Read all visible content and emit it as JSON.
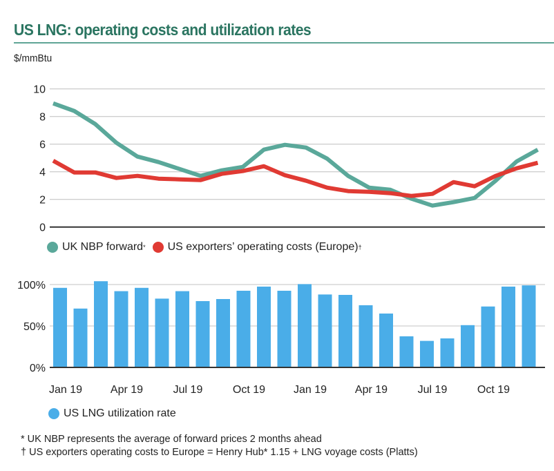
{
  "header": {
    "title": "US LNG: operating costs and utilization rates",
    "unit_label": "$/mmBtu"
  },
  "legend_top": [
    {
      "label": "UK NBP forward",
      "mark": "*",
      "color": "#5aa89a"
    },
    {
      "label": "US exporters’ operating costs (Europe)",
      "mark": "†",
      "color": "#e03a33"
    }
  ],
  "legend_bottom": [
    {
      "label": "US LNG utilization rate",
      "color": "#4aade8"
    }
  ],
  "footnotes": [
    "* UK NBP represents the average of forward prices 2 months ahead",
    "† US exporters operating costs to Europe = Henry Hub* 1.15 + LNG voyage costs (Platts)"
  ],
  "chart_data": [
    {
      "type": "line",
      "title": "US LNG: operating costs and utilization rates",
      "ylabel": "$/mmBtu",
      "xlabel": "",
      "ylim": [
        0,
        10
      ],
      "yticks": [
        0,
        2,
        4,
        6,
        8,
        10
      ],
      "grid": true,
      "legend": "bottom-left",
      "x": [
        "Jan 19",
        "Feb 19",
        "Mar 19",
        "Apr 19",
        "May 19",
        "Jun 19",
        "Jul 19",
        "Aug 19",
        "Sep 19",
        "Oct 19",
        "Nov 19",
        "Dec 19",
        "Jan 19",
        "Feb 19",
        "Mar 19",
        "Apr 19",
        "May 19",
        "Jun 19",
        "Jul 19",
        "Aug 19",
        "Sep 19",
        "Oct 19",
        "Nov 19",
        "Dec 19"
      ],
      "series": [
        {
          "name": "UK NBP forward",
          "color": "#5aa89a",
          "values": [
            8.95,
            8.4,
            7.45,
            6.1,
            5.1,
            4.7,
            4.2,
            3.7,
            4.1,
            4.35,
            5.6,
            5.95,
            5.75,
            4.95,
            3.7,
            2.85,
            2.7,
            2.05,
            1.55,
            1.8,
            2.1,
            3.35,
            4.75,
            5.6
          ]
        },
        {
          "name": "US exporters’ operating costs (Europe)",
          "color": "#e03a33",
          "values": [
            4.8,
            3.95,
            3.95,
            3.55,
            3.7,
            3.5,
            3.45,
            3.4,
            3.85,
            4.05,
            4.4,
            3.75,
            3.35,
            2.85,
            2.6,
            2.55,
            2.45,
            2.25,
            2.4,
            3.25,
            2.95,
            3.7,
            4.25,
            4.65
          ]
        }
      ]
    },
    {
      "type": "bar",
      "ylabel": "",
      "xlabel": "",
      "ylim": [
        0,
        100
      ],
      "yticks": [
        "0%",
        "50%",
        "100%"
      ],
      "grid": true,
      "legend": "bottom-left",
      "categories": [
        "Jan 19",
        "Feb 19",
        "Mar 19",
        "Apr 19",
        "May 19",
        "Jun 19",
        "Jul 19",
        "Aug 19",
        "Sep 19",
        "Oct 19",
        "Nov 19",
        "Dec 19",
        "Jan 19",
        "Feb 19",
        "Mar 19",
        "Apr 19",
        "May 19",
        "Jun 19",
        "Jul 19",
        "Aug 19",
        "Sep 19",
        "Oct 19",
        "Nov 19",
        "Dec 19"
      ],
      "xtick_labels": [
        {
          "index": 0,
          "label": "Jan 19"
        },
        {
          "index": 3,
          "label": "Apr 19"
        },
        {
          "index": 6,
          "label": "Jul 19"
        },
        {
          "index": 9,
          "label": "Oct 19"
        },
        {
          "index": 12,
          "label": "Jan 19"
        },
        {
          "index": 15,
          "label": "Apr 19"
        },
        {
          "index": 18,
          "label": "Jul 19"
        },
        {
          "index": 21,
          "label": "Oct 19"
        }
      ],
      "series": [
        {
          "name": "US LNG utilization rate",
          "color": "#4aade8",
          "values": [
            96,
            71,
            104,
            92,
            96,
            83,
            92,
            80,
            82.5,
            92.5,
            97.5,
            92.5,
            100.5,
            88,
            87.5,
            75,
            65,
            37.5,
            32,
            35,
            51,
            73.5,
            97.5,
            99
          ]
        }
      ]
    }
  ]
}
